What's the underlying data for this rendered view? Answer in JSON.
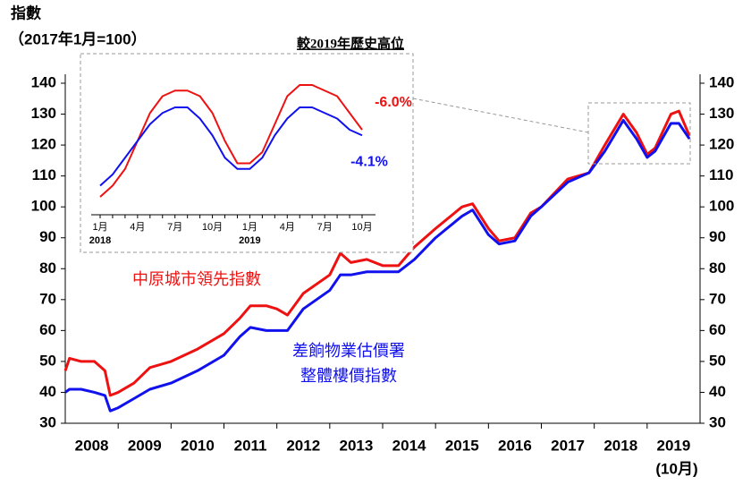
{
  "chart_data": [
    {
      "type": "line",
      "y_title": "指數",
      "y_subtitle": "（2017年1月=100）",
      "x_note": "(10月)",
      "xlim": [
        2008,
        2020
      ],
      "xticks": [
        {
          "value": 2008.5,
          "label": "2008"
        },
        {
          "value": 2009.5,
          "label": "2009"
        },
        {
          "value": 2010.5,
          "label": "2010"
        },
        {
          "value": 2011.5,
          "label": "2011"
        },
        {
          "value": 2012.5,
          "label": "2012"
        },
        {
          "value": 2013.5,
          "label": "2013"
        },
        {
          "value": 2014.5,
          "label": "2014"
        },
        {
          "value": 2015.5,
          "label": "2015"
        },
        {
          "value": 2016.5,
          "label": "2016"
        },
        {
          "value": 2017.5,
          "label": "2017"
        },
        {
          "value": 2018.5,
          "label": "2018"
        },
        {
          "value": 2019.5,
          "label": "2019"
        }
      ],
      "ylim": [
        30,
        140
      ],
      "yticks": [
        30,
        40,
        50,
        60,
        70,
        80,
        90,
        100,
        110,
        120,
        130,
        140
      ],
      "y2lim": [
        30,
        140
      ],
      "y2ticks": [
        30,
        40,
        50,
        60,
        70,
        80,
        90,
        100,
        110,
        120,
        130,
        140
      ],
      "series": [
        {
          "name": [
            "中原城市領先指數"
          ],
          "color": "#ee1111",
          "x": [
            2008.0,
            2008.08,
            2008.3,
            2008.55,
            2008.75,
            2008.85,
            2009.0,
            2009.3,
            2009.6,
            2010.0,
            2010.5,
            2011.0,
            2011.3,
            2011.5,
            2011.8,
            2012.0,
            2012.2,
            2012.5,
            2013.0,
            2013.2,
            2013.4,
            2013.7,
            2014.0,
            2014.3,
            2014.6,
            2015.0,
            2015.5,
            2015.7,
            2016.0,
            2016.2,
            2016.5,
            2016.8,
            2017.0,
            2017.5,
            2017.9,
            2018.2,
            2018.55,
            2018.8,
            2019.0,
            2019.15,
            2019.45,
            2019.6,
            2019.8
          ],
          "values": [
            47,
            51,
            50,
            50,
            47,
            39,
            40,
            43,
            48,
            50,
            54,
            59,
            64,
            68,
            68,
            67,
            65,
            72,
            78,
            85,
            82,
            83,
            81,
            81,
            87,
            93,
            100,
            101,
            93,
            89,
            90,
            98,
            100,
            109,
            111,
            120,
            130,
            124,
            117,
            119,
            130,
            131,
            123
          ]
        },
        {
          "name": [
            "差餉物業估價署",
            "整體樓價指數"
          ],
          "color": "#1111ee",
          "x": [
            2008.0,
            2008.08,
            2008.3,
            2008.55,
            2008.75,
            2008.85,
            2009.0,
            2009.3,
            2009.6,
            2010.0,
            2010.5,
            2011.0,
            2011.3,
            2011.5,
            2011.8,
            2012.0,
            2012.2,
            2012.5,
            2013.0,
            2013.2,
            2013.4,
            2013.7,
            2014.0,
            2014.3,
            2014.6,
            2015.0,
            2015.5,
            2015.7,
            2016.0,
            2016.2,
            2016.5,
            2016.8,
            2017.0,
            2017.5,
            2017.9,
            2018.2,
            2018.55,
            2018.8,
            2019.0,
            2019.15,
            2019.45,
            2019.6,
            2019.8
          ],
          "values": [
            40,
            41,
            41,
            40,
            39,
            34,
            35,
            38,
            41,
            43,
            47,
            52,
            58,
            61,
            60,
            60,
            60,
            67,
            73,
            78,
            78,
            79,
            79,
            79,
            83,
            90,
            97,
            99,
            91,
            88,
            89,
            97,
            100,
            108,
            111,
            118,
            128,
            122,
            116,
            118,
            127,
            127,
            122
          ]
        }
      ]
    },
    {
      "type": "line",
      "title": "較2019年歷史高位",
      "categories": [
        "1月",
        null,
        null,
        "4月",
        null,
        null,
        "7月",
        null,
        null,
        "10月",
        null,
        null,
        "1月",
        null,
        null,
        "4月",
        null,
        null,
        "7月",
        null,
        null,
        "10月"
      ],
      "year_labels": [
        "2018",
        null,
        null,
        null,
        null,
        null,
        null,
        null,
        null,
        null,
        null,
        null,
        "2019",
        null,
        null,
        null,
        null,
        null,
        null,
        null,
        null,
        null
      ],
      "series": [
        {
          "name": "中原城市領先指數",
          "color": "#ee1111",
          "end_label": "-6.0%",
          "values": [
            111,
            113,
            116,
            121,
            126,
            129,
            130,
            130,
            129,
            126,
            121,
            117,
            117,
            119,
            124,
            129,
            131,
            131,
            130,
            129,
            126,
            123
          ]
        },
        {
          "name": "差餉物業估價署整體樓價指數",
          "color": "#1111ee",
          "end_label": "-4.1%",
          "values": [
            113,
            115,
            118,
            121,
            124,
            126,
            127,
            127,
            125,
            122,
            118,
            116,
            116,
            118,
            122,
            125,
            127,
            127,
            126,
            125,
            123,
            122
          ]
        }
      ]
    }
  ]
}
